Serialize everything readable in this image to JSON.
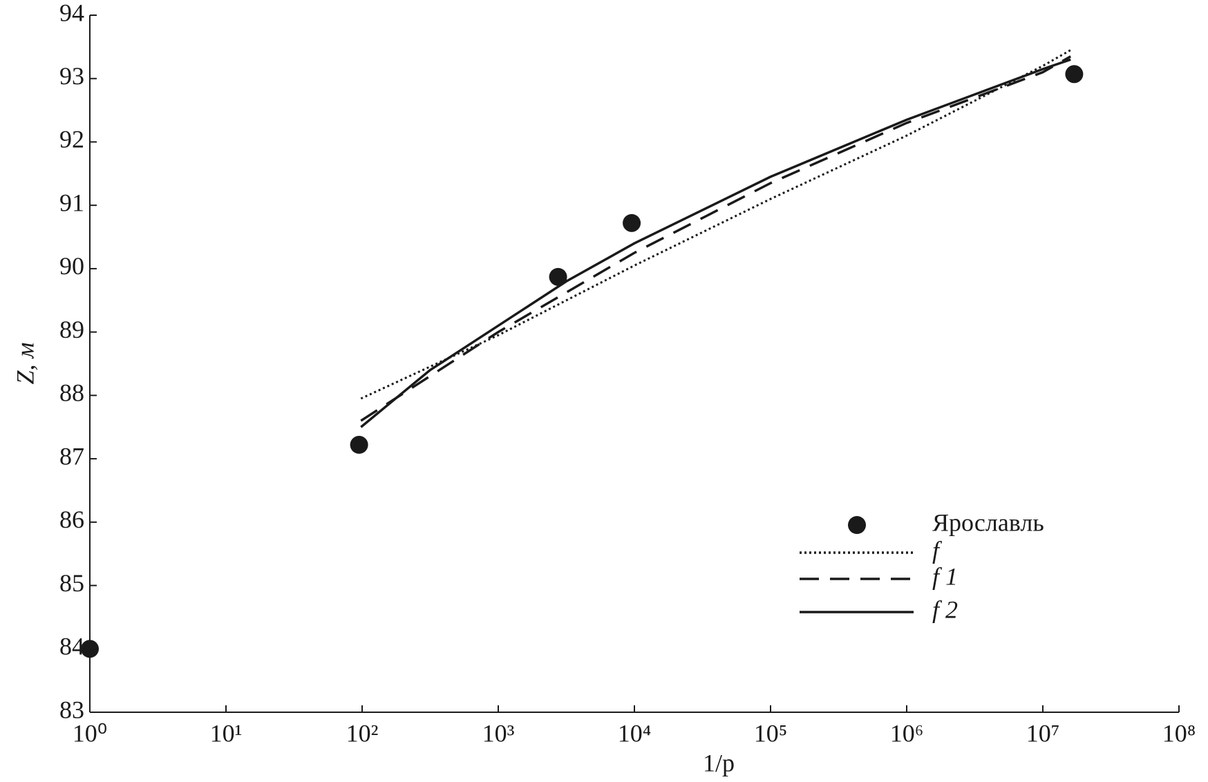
{
  "chart_data": {
    "type": "line",
    "x_label": "1/p",
    "y_label": "Z, м",
    "xscale": "log",
    "xlim": [
      1,
      100000000
    ],
    "ylim": [
      83,
      94
    ],
    "xticks": [
      {
        "value": 1,
        "label": "10⁰"
      },
      {
        "value": 10,
        "label": "10¹"
      },
      {
        "value": 100,
        "label": "10²"
      },
      {
        "value": 1000,
        "label": "10³"
      },
      {
        "value": 10000,
        "label": "10⁴"
      },
      {
        "value": 100000,
        "label": "10⁵"
      },
      {
        "value": 1000000,
        "label": "10⁶"
      },
      {
        "value": 10000000,
        "label": "10⁷"
      },
      {
        "value": 100000000,
        "label": "10⁸"
      }
    ],
    "yticks": [
      83,
      84,
      85,
      86,
      87,
      88,
      89,
      90,
      91,
      92,
      93,
      94
    ],
    "legend": "lower right",
    "series": [
      {
        "name": "Ярославль",
        "type": "scatter",
        "color": "#1a1a1a",
        "x": [
          1,
          95,
          2750,
          9550,
          17000000
        ],
        "values": [
          84.0,
          87.22,
          89.87,
          90.72,
          93.07
        ]
      },
      {
        "name": "f",
        "style": "dotted",
        "color": "#1a1a1a",
        "x": [
          98,
          1000,
          10000,
          100000,
          1000000,
          10000000,
          16000000
        ],
        "values": [
          87.95,
          88.95,
          90.05,
          91.1,
          92.1,
          93.2,
          93.45
        ]
      },
      {
        "name": "f 1",
        "style": "dashed",
        "color": "#1a1a1a",
        "x": [
          98,
          1000,
          10000,
          100000,
          1000000,
          10000000,
          16000000
        ],
        "values": [
          87.6,
          89.0,
          90.25,
          91.35,
          92.3,
          93.1,
          93.35
        ]
      },
      {
        "name": "f 2",
        "style": "solid",
        "color": "#1a1a1a",
        "x": [
          98,
          316,
          1000,
          3162,
          10000,
          100000,
          1000000,
          10000000,
          16000000
        ],
        "values": [
          87.5,
          88.4,
          89.1,
          89.8,
          90.4,
          91.45,
          92.35,
          93.15,
          93.3
        ]
      }
    ]
  }
}
